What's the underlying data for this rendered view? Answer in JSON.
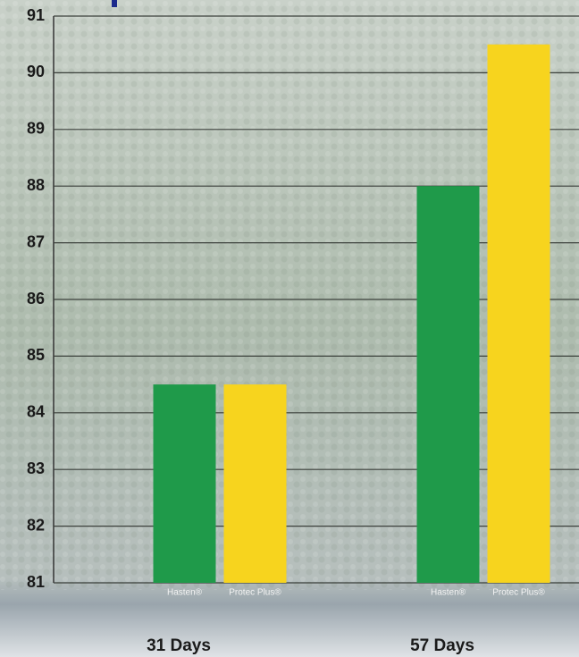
{
  "chart_data": {
    "type": "bar",
    "categories": [
      "31 Days",
      "57 Days"
    ],
    "series": [
      {
        "name": "Hasten®",
        "color": "#1f9a4a",
        "values": [
          84.5,
          88
        ]
      },
      {
        "name": "Protec Plus®",
        "color": "#f7d41e",
        "values": [
          84.5,
          90.5
        ]
      }
    ],
    "ylim": [
      81,
      91
    ],
    "yticks": [
      81,
      82,
      83,
      84,
      85,
      86,
      87,
      88,
      89,
      90,
      91
    ],
    "grid": true
  }
}
